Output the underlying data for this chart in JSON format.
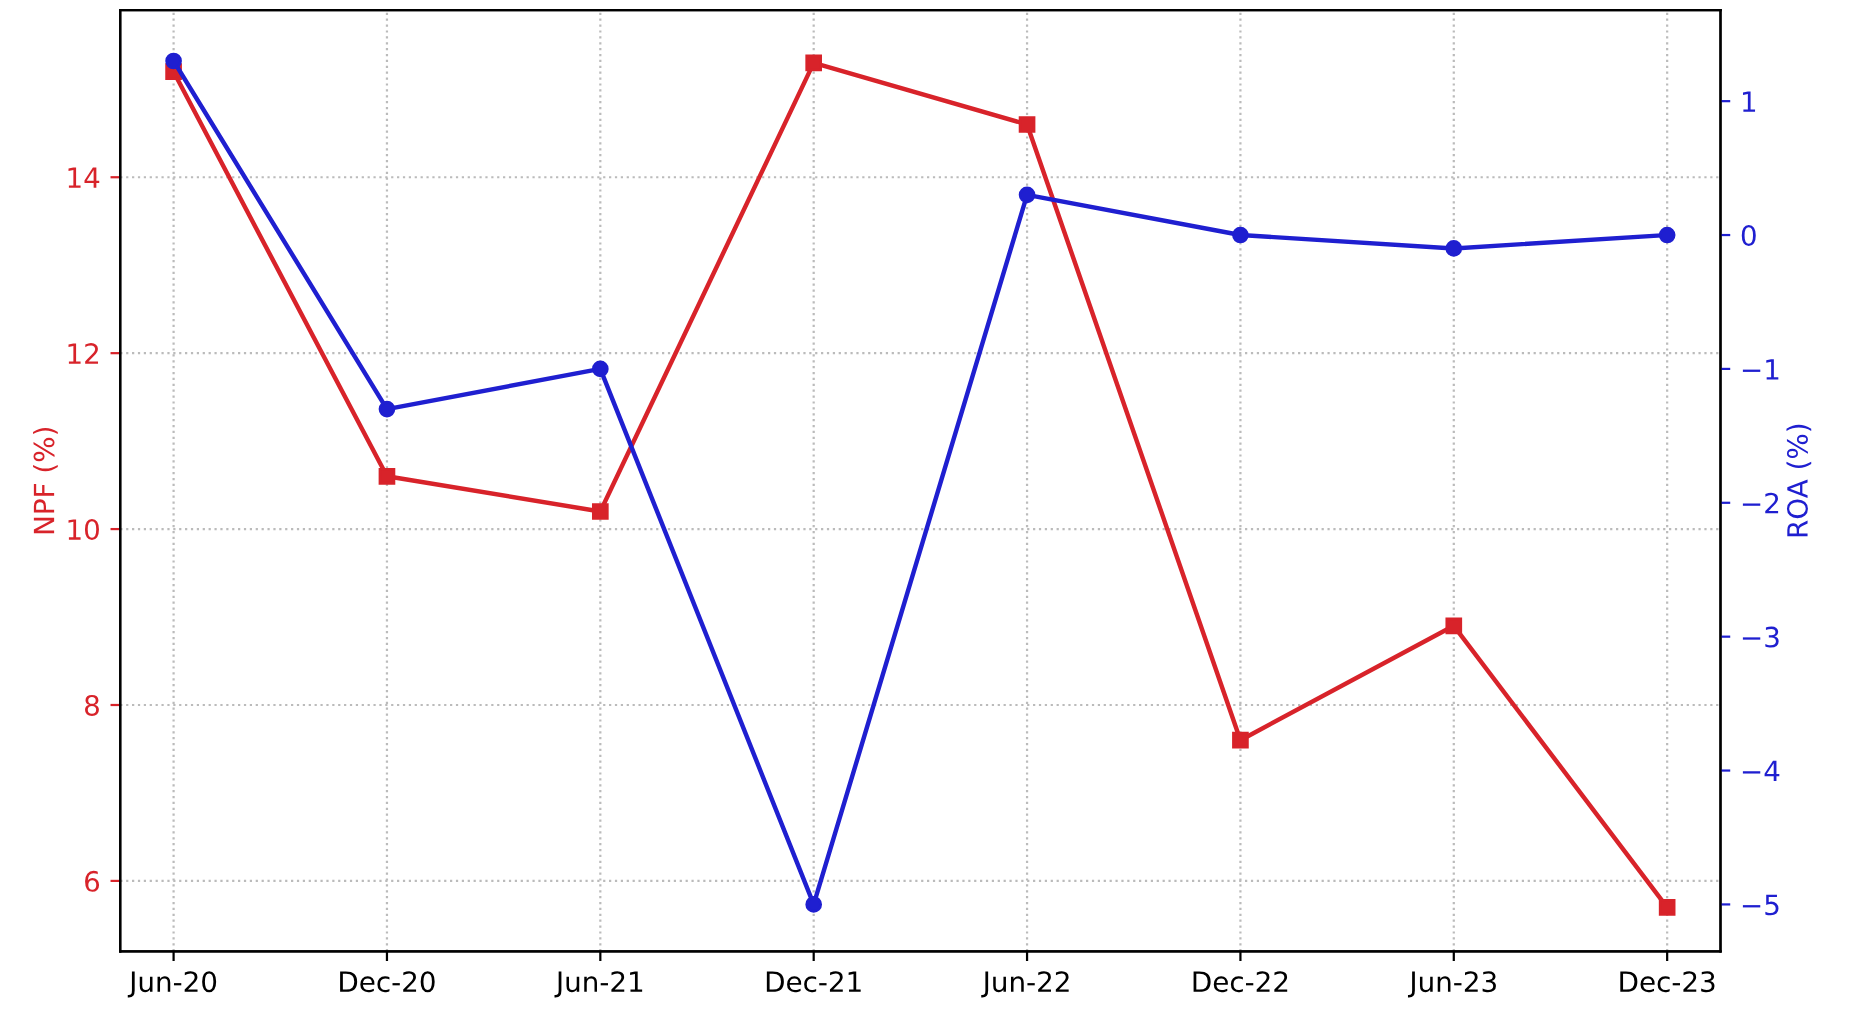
{
  "chart_data": {
    "type": "line",
    "categories": [
      "Jun-20",
      "Dec-20",
      "Jun-21",
      "Dec-21",
      "Jun-22",
      "Dec-22",
      "Jun-23",
      "Dec-23"
    ],
    "ylabel": "NPF (%)",
    "y2label": "ROA (%)",
    "series": [
      {
        "color": "#d8232a",
        "marker": "square",
        "values": [
          15.2,
          10.6,
          10.2,
          15.3,
          14.6,
          7.6,
          8.9,
          5.7
        ]
      },
      {
        "color": "#1f1fd0",
        "marker": "circle",
        "axis": "y2",
        "values": [
          1.3,
          -1.3,
          -1.0,
          -5.0,
          0.3,
          0.0,
          -0.1,
          0.0
        ]
      }
    ],
    "ylim": [
      5.2,
      15.9
    ],
    "yticks": [
      6,
      8,
      10,
      12,
      14
    ],
    "y2lim": [
      -5.35,
      1.68
    ],
    "y2ticks": [
      {
        "value": -5,
        "label": "−5"
      },
      {
        "value": -4,
        "label": "−4"
      },
      {
        "value": -3,
        "label": "−3"
      },
      {
        "value": -2,
        "label": "−2"
      },
      {
        "value": -1,
        "label": "−1"
      },
      0,
      1
    ],
    "grid": true,
    "legend": false,
    "line_style": "solid"
  }
}
